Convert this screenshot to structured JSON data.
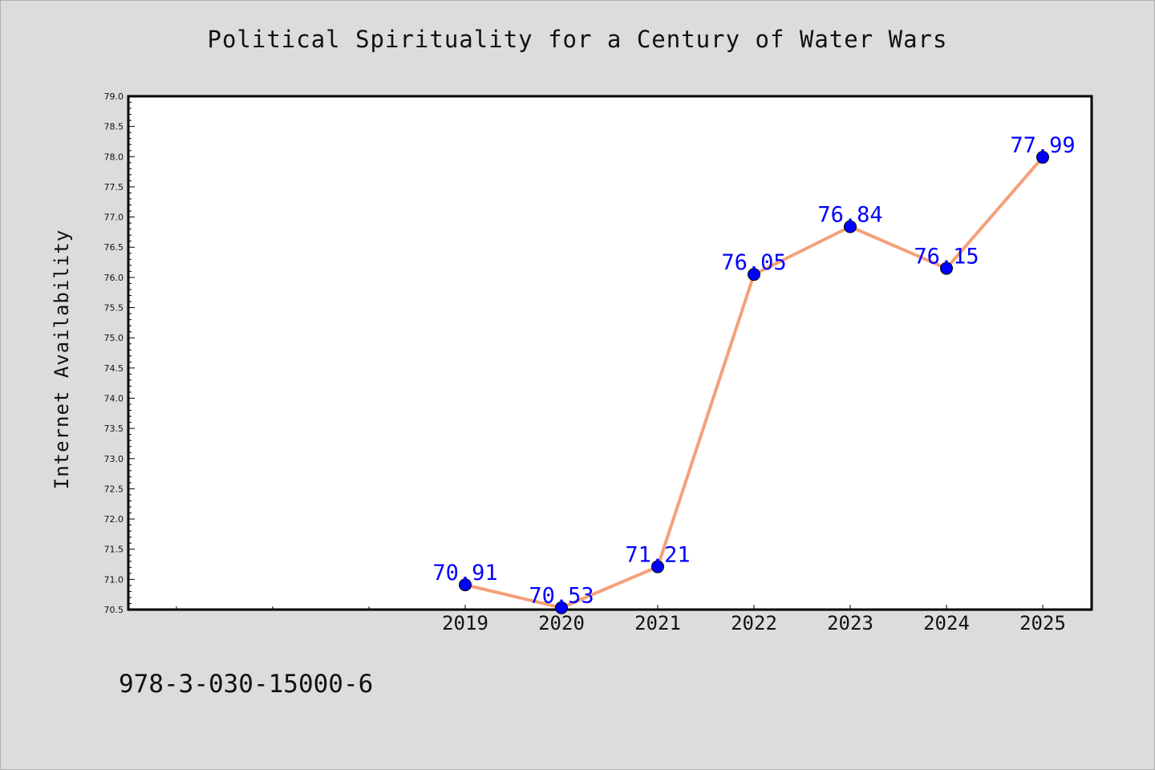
{
  "chart_data": {
    "type": "line",
    "title": "Political Spirituality for a Century of Water Wars",
    "xlabel": "",
    "ylabel": "Internet Availability",
    "categories": [
      "2019",
      "2020",
      "2021",
      "2022",
      "2023",
      "2024",
      "2025"
    ],
    "series": [
      {
        "values": [
          70.91,
          70.53,
          71.21,
          76.05,
          76.84,
          76.15,
          77.99
        ],
        "line_color": "#f4a07a",
        "marker_color": "#0000ff",
        "label_color": "#0000ff"
      }
    ],
    "data_labels": [
      "70.91",
      "70.53",
      "71.21",
      "76.05",
      "76.84",
      "76.15",
      "77.99"
    ],
    "y_ticks": [
      "70.5",
      "71.0",
      "71.5",
      "72.0",
      "72.5",
      "73.0",
      "73.5",
      "74.0",
      "74.5",
      "75.0",
      "75.5",
      "76.0",
      "76.5",
      "77.0",
      "77.5",
      "78.0",
      "78.5",
      "79.0"
    ],
    "ylim": [
      70.5,
      79.0
    ],
    "grid": false,
    "legend": "none"
  },
  "footer": {
    "isbn": "978-3-030-15000-6"
  }
}
